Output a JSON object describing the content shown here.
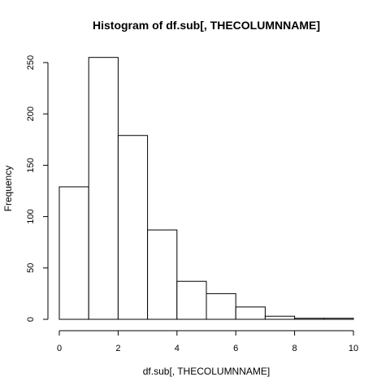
{
  "chart_data": {
    "type": "bar",
    "title": "Histogram of df.sub[, THECOLUMNNAME]",
    "xlabel": "df.sub[, THECOLUMNNAME]",
    "ylabel": "Frequency",
    "bins": [
      {
        "x0": 0,
        "x1": 1,
        "count": 129
      },
      {
        "x0": 1,
        "x1": 2,
        "count": 255
      },
      {
        "x0": 2,
        "x1": 3,
        "count": 179
      },
      {
        "x0": 3,
        "x1": 4,
        "count": 87
      },
      {
        "x0": 4,
        "x1": 5,
        "count": 37
      },
      {
        "x0": 5,
        "x1": 6,
        "count": 25
      },
      {
        "x0": 6,
        "x1": 7,
        "count": 12
      },
      {
        "x0": 7,
        "x1": 8,
        "count": 3
      },
      {
        "x0": 8,
        "x1": 9,
        "count": 1
      },
      {
        "x0": 9,
        "x1": 10,
        "count": 1
      }
    ],
    "xlim": [
      0,
      10
    ],
    "ylim": [
      0,
      250
    ],
    "x_ticks": [
      0,
      2,
      4,
      6,
      8,
      10
    ],
    "y_ticks": [
      0,
      50,
      100,
      150,
      200,
      250
    ],
    "grid": false,
    "legend": "none"
  }
}
